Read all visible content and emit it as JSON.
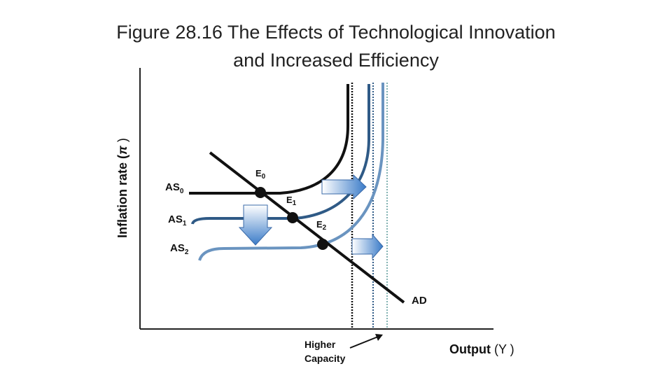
{
  "title": {
    "line1": "Figure 28.16 The Effects of Technological Innovation",
    "line2": "and Increased Efficiency"
  },
  "axes": {
    "y_label": {
      "text": "Inflation rate (",
      "symbol": "π",
      "close": " )"
    },
    "x_label": {
      "text": "Output",
      "symbol": "(Y )"
    }
  },
  "curves": [
    {
      "name": "AS",
      "sub": "0"
    },
    {
      "name": "AS",
      "sub": "1"
    },
    {
      "name": "AS",
      "sub": "2"
    },
    {
      "name": "AD"
    }
  ],
  "points": [
    {
      "name": "E",
      "sub": "0"
    },
    {
      "name": "E",
      "sub": "1"
    },
    {
      "name": "E",
      "sub": "2"
    }
  ],
  "annotation": {
    "line1": "Higher",
    "line2": "Capacity"
  }
}
